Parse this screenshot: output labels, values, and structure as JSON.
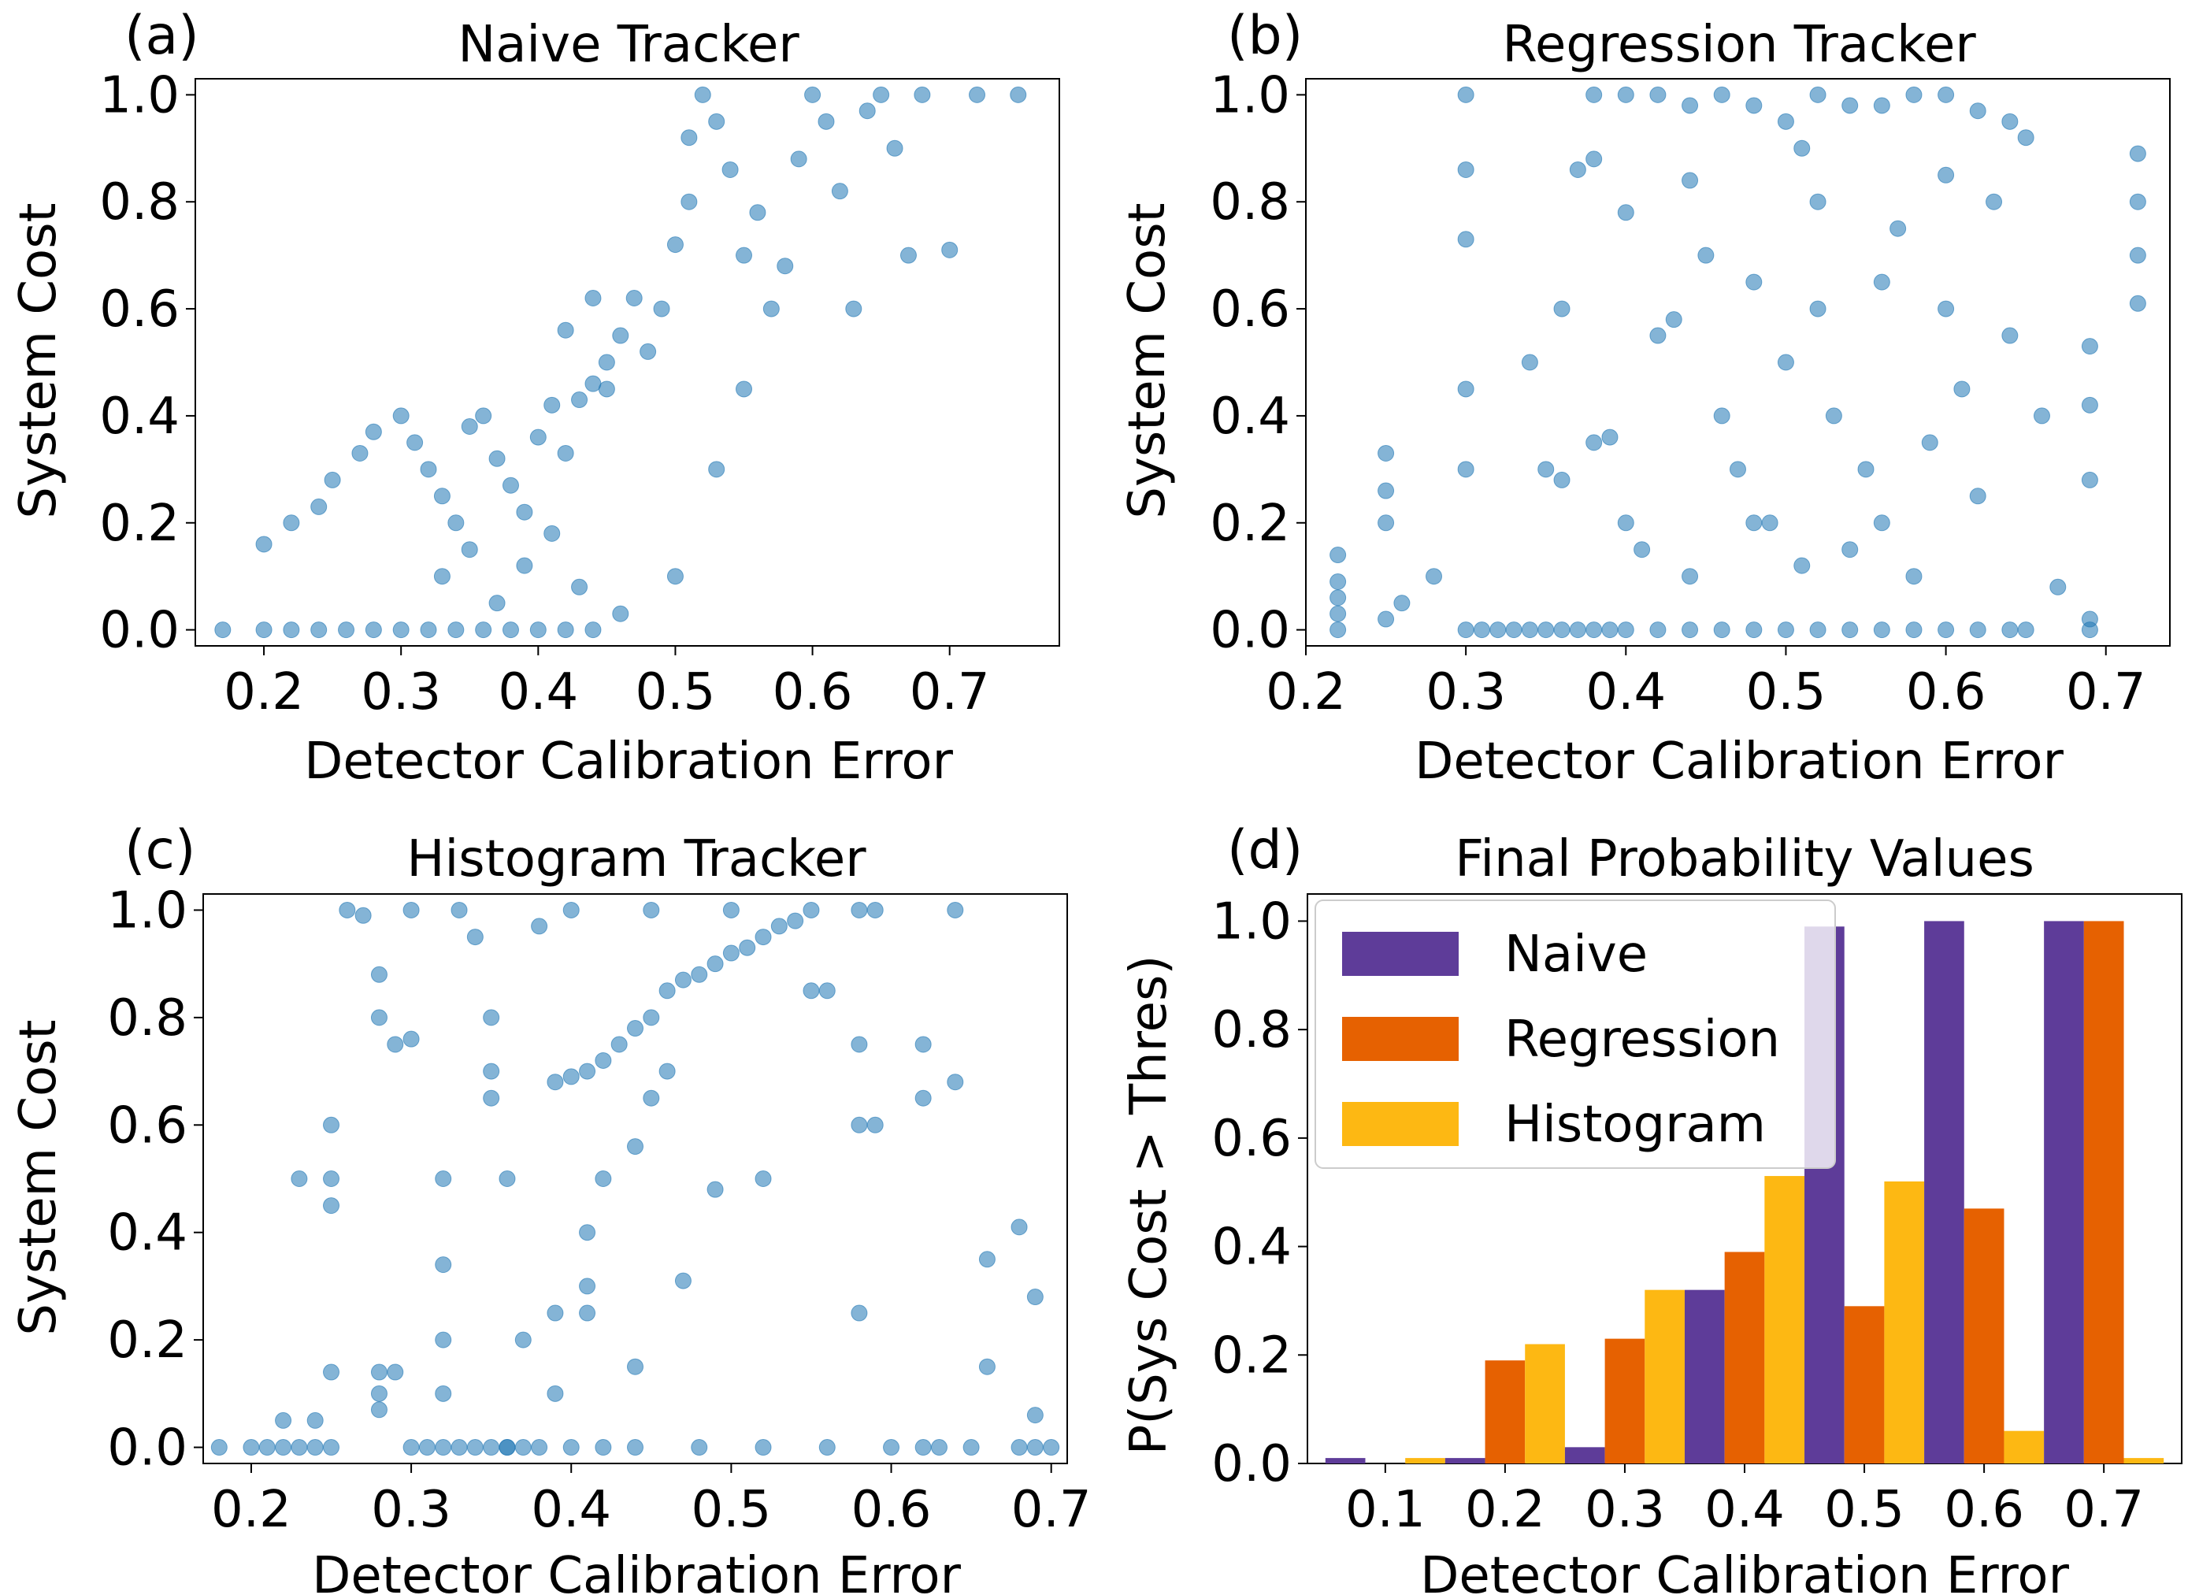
{
  "figure": {
    "panels": [
      {
        "label": "(a)",
        "title": "Naive Tracker",
        "xlabel": "Detector Calibration Error",
        "ylabel": "System Cost"
      },
      {
        "label": "(b)",
        "title": "Regression Tracker",
        "xlabel": "Detector Calibration Error",
        "ylabel": "System Cost"
      },
      {
        "label": "(c)",
        "title": "Histogram Tracker",
        "xlabel": "Detector Calibration Error",
        "ylabel": "System Cost"
      },
      {
        "label": "(d)",
        "title": "Final Probability Values",
        "xlabel": "Detector Calibration Error",
        "ylabel": "P(Sys Cost > Thres)"
      }
    ]
  },
  "chart_data": [
    {
      "type": "scatter",
      "title": "Naive Tracker",
      "xlabel": "Detector Calibration Error",
      "ylabel": "System Cost",
      "xlim": [
        0.15,
        0.78
      ],
      "ylim": [
        -0.03,
        1.03
      ],
      "xticks": [
        "0.2",
        "0.3",
        "0.4",
        "0.5",
        "0.6",
        "0.7"
      ],
      "yticks": [
        "0.0",
        "0.2",
        "0.4",
        "0.6",
        "0.8",
        "1.0"
      ],
      "color": "#1f77b4",
      "points": [
        [
          0.17,
          0.0
        ],
        [
          0.2,
          0.0
        ],
        [
          0.22,
          0.0
        ],
        [
          0.24,
          0.0
        ],
        [
          0.26,
          0.0
        ],
        [
          0.28,
          0.0
        ],
        [
          0.3,
          0.0
        ],
        [
          0.32,
          0.0
        ],
        [
          0.34,
          0.0
        ],
        [
          0.36,
          0.0
        ],
        [
          0.38,
          0.0
        ],
        [
          0.4,
          0.0
        ],
        [
          0.42,
          0.0
        ],
        [
          0.44,
          0.0
        ],
        [
          0.46,
          0.03
        ],
        [
          0.2,
          0.16
        ],
        [
          0.22,
          0.2
        ],
        [
          0.24,
          0.23
        ],
        [
          0.25,
          0.28
        ],
        [
          0.27,
          0.33
        ],
        [
          0.28,
          0.37
        ],
        [
          0.3,
          0.4
        ],
        [
          0.31,
          0.35
        ],
        [
          0.32,
          0.3
        ],
        [
          0.33,
          0.25
        ],
        [
          0.34,
          0.2
        ],
        [
          0.35,
          0.38
        ],
        [
          0.36,
          0.4
        ],
        [
          0.37,
          0.32
        ],
        [
          0.38,
          0.27
        ],
        [
          0.39,
          0.22
        ],
        [
          0.4,
          0.36
        ],
        [
          0.41,
          0.42
        ],
        [
          0.42,
          0.33
        ],
        [
          0.43,
          0.43
        ],
        [
          0.44,
          0.46
        ],
        [
          0.45,
          0.5
        ],
        [
          0.46,
          0.55
        ],
        [
          0.47,
          0.62
        ],
        [
          0.48,
          0.52
        ],
        [
          0.49,
          0.6
        ],
        [
          0.5,
          0.72
        ],
        [
          0.51,
          0.8
        ],
        [
          0.51,
          0.92
        ],
        [
          0.52,
          1.0
        ],
        [
          0.53,
          0.95
        ],
        [
          0.54,
          0.86
        ],
        [
          0.55,
          0.7
        ],
        [
          0.56,
          0.78
        ],
        [
          0.57,
          0.6
        ],
        [
          0.58,
          0.68
        ],
        [
          0.59,
          0.88
        ],
        [
          0.6,
          1.0
        ],
        [
          0.61,
          0.95
        ],
        [
          0.62,
          0.82
        ],
        [
          0.63,
          0.6
        ],
        [
          0.64,
          0.97
        ],
        [
          0.65,
          1.0
        ],
        [
          0.66,
          0.9
        ],
        [
          0.67,
          0.7
        ],
        [
          0.68,
          1.0
        ],
        [
          0.7,
          0.71
        ],
        [
          0.72,
          1.0
        ],
        [
          0.75,
          1.0
        ],
        [
          0.33,
          0.1
        ],
        [
          0.35,
          0.15
        ],
        [
          0.37,
          0.05
        ],
        [
          0.39,
          0.12
        ],
        [
          0.41,
          0.18
        ],
        [
          0.43,
          0.08
        ],
        [
          0.45,
          0.45
        ],
        [
          0.5,
          0.1
        ],
        [
          0.42,
          0.56
        ],
        [
          0.44,
          0.62
        ],
        [
          0.53,
          0.3
        ],
        [
          0.55,
          0.45
        ]
      ]
    },
    {
      "type": "scatter",
      "title": "Regression Tracker",
      "xlabel": "Detector Calibration Error",
      "ylabel": "System Cost",
      "xlim": [
        0.2,
        0.74
      ],
      "ylim": [
        -0.03,
        1.03
      ],
      "xticks": [
        "0.2",
        "0.3",
        "0.4",
        "0.5",
        "0.6",
        "0.7"
      ],
      "yticks": [
        "0.0",
        "0.2",
        "0.4",
        "0.6",
        "0.8",
        "1.0"
      ],
      "color": "#1f77b4",
      "points": [
        [
          0.22,
          0.0
        ],
        [
          0.22,
          0.03
        ],
        [
          0.22,
          0.06
        ],
        [
          0.22,
          0.09
        ],
        [
          0.22,
          0.14
        ],
        [
          0.25,
          0.02
        ],
        [
          0.25,
          0.2
        ],
        [
          0.25,
          0.26
        ],
        [
          0.25,
          0.33
        ],
        [
          0.26,
          0.05
        ],
        [
          0.28,
          0.1
        ],
        [
          0.3,
          0.0
        ],
        [
          0.3,
          0.3
        ],
        [
          0.3,
          0.45
        ],
        [
          0.3,
          0.73
        ],
        [
          0.3,
          0.86
        ],
        [
          0.3,
          1.0
        ],
        [
          0.31,
          0.0
        ],
        [
          0.32,
          0.0
        ],
        [
          0.33,
          0.0
        ],
        [
          0.34,
          0.0
        ],
        [
          0.35,
          0.0
        ],
        [
          0.36,
          0.0
        ],
        [
          0.37,
          0.0
        ],
        [
          0.38,
          0.0
        ],
        [
          0.39,
          0.0
        ],
        [
          0.4,
          0.0
        ],
        [
          0.42,
          0.0
        ],
        [
          0.44,
          0.0
        ],
        [
          0.46,
          0.0
        ],
        [
          0.48,
          0.0
        ],
        [
          0.5,
          0.0
        ],
        [
          0.52,
          0.0
        ],
        [
          0.54,
          0.0
        ],
        [
          0.56,
          0.0
        ],
        [
          0.58,
          0.0
        ],
        [
          0.6,
          0.0
        ],
        [
          0.62,
          0.0
        ],
        [
          0.64,
          0.0
        ],
        [
          0.65,
          0.0
        ],
        [
          0.34,
          0.5
        ],
        [
          0.35,
          0.3
        ],
        [
          0.36,
          0.28
        ],
        [
          0.37,
          0.86
        ],
        [
          0.38,
          0.88
        ],
        [
          0.38,
          1.0
        ],
        [
          0.4,
          1.0
        ],
        [
          0.42,
          1.0
        ],
        [
          0.44,
          0.98
        ],
        [
          0.46,
          1.0
        ],
        [
          0.48,
          0.98
        ],
        [
          0.5,
          0.95
        ],
        [
          0.51,
          0.9
        ],
        [
          0.52,
          1.0
        ],
        [
          0.54,
          0.98
        ],
        [
          0.56,
          0.98
        ],
        [
          0.58,
          1.0
        ],
        [
          0.6,
          1.0
        ],
        [
          0.62,
          0.97
        ],
        [
          0.64,
          0.95
        ],
        [
          0.65,
          0.92
        ],
        [
          0.38,
          0.35
        ],
        [
          0.39,
          0.36
        ],
        [
          0.4,
          0.2
        ],
        [
          0.41,
          0.15
        ],
        [
          0.42,
          0.55
        ],
        [
          0.43,
          0.58
        ],
        [
          0.44,
          0.1
        ],
        [
          0.45,
          0.7
        ],
        [
          0.46,
          0.4
        ],
        [
          0.47,
          0.3
        ],
        [
          0.48,
          0.65
        ],
        [
          0.49,
          0.2
        ],
        [
          0.5,
          0.5
        ],
        [
          0.51,
          0.12
        ],
        [
          0.52,
          0.8
        ],
        [
          0.53,
          0.4
        ],
        [
          0.54,
          0.15
        ],
        [
          0.55,
          0.3
        ],
        [
          0.56,
          0.65
        ],
        [
          0.57,
          0.75
        ],
        [
          0.58,
          0.1
        ],
        [
          0.59,
          0.35
        ],
        [
          0.6,
          0.6
        ],
        [
          0.61,
          0.45
        ],
        [
          0.62,
          0.25
        ],
        [
          0.63,
          0.8
        ],
        [
          0.64,
          0.55
        ],
        [
          0.66,
          0.4
        ],
        [
          0.67,
          0.08
        ],
        [
          0.69,
          0.0
        ],
        [
          0.69,
          0.02
        ],
        [
          0.69,
          0.28
        ],
        [
          0.69,
          0.42
        ],
        [
          0.69,
          0.53
        ],
        [
          0.72,
          0.61
        ],
        [
          0.72,
          0.7
        ],
        [
          0.72,
          0.8
        ],
        [
          0.72,
          0.89
        ],
        [
          0.36,
          0.6
        ],
        [
          0.4,
          0.78
        ],
        [
          0.44,
          0.84
        ],
        [
          0.48,
          0.2
        ],
        [
          0.52,
          0.6
        ],
        [
          0.56,
          0.2
        ],
        [
          0.6,
          0.85
        ]
      ]
    },
    {
      "type": "scatter",
      "title": "Histogram Tracker",
      "xlabel": "Detector Calibration Error",
      "ylabel": "System Cost",
      "xlim": [
        0.17,
        0.71
      ],
      "ylim": [
        -0.03,
        1.03
      ],
      "xticks": [
        "0.2",
        "0.3",
        "0.4",
        "0.5",
        "0.6",
        "0.7"
      ],
      "yticks": [
        "0.0",
        "0.2",
        "0.4",
        "0.6",
        "0.8",
        "1.0"
      ],
      "color": "#1f77b4",
      "points": [
        [
          0.18,
          0.0
        ],
        [
          0.2,
          0.0
        ],
        [
          0.21,
          0.0
        ],
        [
          0.22,
          0.0
        ],
        [
          0.22,
          0.05
        ],
        [
          0.23,
          0.0
        ],
        [
          0.24,
          0.0
        ],
        [
          0.24,
          0.05
        ],
        [
          0.25,
          0.0
        ],
        [
          0.25,
          0.14
        ],
        [
          0.25,
          0.45
        ],
        [
          0.25,
          0.5
        ],
        [
          0.25,
          0.6
        ],
        [
          0.23,
          0.5
        ],
        [
          0.26,
          1.0
        ],
        [
          0.27,
          0.99
        ],
        [
          0.28,
          0.07
        ],
        [
          0.28,
          0.1
        ],
        [
          0.28,
          0.14
        ],
        [
          0.28,
          0.88
        ],
        [
          0.28,
          0.8
        ],
        [
          0.29,
          0.75
        ],
        [
          0.29,
          0.14
        ],
        [
          0.3,
          0.0
        ],
        [
          0.3,
          1.0
        ],
        [
          0.3,
          0.76
        ],
        [
          0.31,
          0.0
        ],
        [
          0.32,
          0.0
        ],
        [
          0.32,
          0.1
        ],
        [
          0.32,
          0.2
        ],
        [
          0.32,
          0.34
        ],
        [
          0.32,
          0.5
        ],
        [
          0.33,
          0.0
        ],
        [
          0.33,
          1.0
        ],
        [
          0.34,
          0.0
        ],
        [
          0.34,
          0.95
        ],
        [
          0.35,
          0.0
        ],
        [
          0.35,
          0.8
        ],
        [
          0.35,
          0.7
        ],
        [
          0.35,
          0.65
        ],
        [
          0.36,
          0.5
        ],
        [
          0.36,
          0.0
        ],
        [
          0.37,
          0.0
        ],
        [
          0.37,
          0.2
        ],
        [
          0.38,
          0.0
        ],
        [
          0.38,
          0.97
        ],
        [
          0.39,
          0.68
        ],
        [
          0.39,
          0.1
        ],
        [
          0.39,
          0.25
        ],
        [
          0.4,
          0.0
        ],
        [
          0.4,
          0.69
        ],
        [
          0.4,
          1.0
        ],
        [
          0.41,
          0.7
        ],
        [
          0.41,
          0.4
        ],
        [
          0.41,
          0.3
        ],
        [
          0.41,
          0.25
        ],
        [
          0.42,
          0.72
        ],
        [
          0.42,
          0.0
        ],
        [
          0.42,
          0.5
        ],
        [
          0.43,
          0.75
        ],
        [
          0.44,
          0.78
        ],
        [
          0.44,
          0.56
        ],
        [
          0.44,
          0.15
        ],
        [
          0.45,
          0.8
        ],
        [
          0.45,
          0.65
        ],
        [
          0.46,
          0.85
        ],
        [
          0.46,
          0.7
        ],
        [
          0.47,
          0.87
        ],
        [
          0.47,
          0.31
        ],
        [
          0.48,
          0.88
        ],
        [
          0.48,
          0.0
        ],
        [
          0.49,
          0.9
        ],
        [
          0.49,
          0.48
        ],
        [
          0.5,
          0.92
        ],
        [
          0.51,
          0.93
        ],
        [
          0.52,
          0.95
        ],
        [
          0.52,
          0.5
        ],
        [
          0.53,
          0.97
        ],
        [
          0.54,
          0.98
        ],
        [
          0.55,
          1.0
        ],
        [
          0.55,
          0.85
        ],
        [
          0.5,
          1.0
        ],
        [
          0.45,
          1.0
        ],
        [
          0.56,
          0.0
        ],
        [
          0.56,
          0.85
        ],
        [
          0.58,
          1.0
        ],
        [
          0.58,
          0.75
        ],
        [
          0.58,
          0.6
        ],
        [
          0.58,
          0.25
        ],
        [
          0.59,
          0.6
        ],
        [
          0.59,
          1.0
        ],
        [
          0.6,
          0.0
        ],
        [
          0.62,
          0.0
        ],
        [
          0.62,
          0.65
        ],
        [
          0.62,
          0.75
        ],
        [
          0.63,
          0.0
        ],
        [
          0.64,
          0.68
        ],
        [
          0.64,
          1.0
        ],
        [
          0.65,
          0.0
        ],
        [
          0.66,
          0.35
        ],
        [
          0.66,
          0.15
        ],
        [
          0.68,
          0.0
        ],
        [
          0.68,
          0.41
        ],
        [
          0.69,
          0.0
        ],
        [
          0.69,
          0.06
        ],
        [
          0.69,
          0.28
        ],
        [
          0.7,
          0.0
        ],
        [
          0.52,
          0.0
        ],
        [
          0.44,
          0.0
        ],
        [
          0.36,
          0.0
        ]
      ]
    },
    {
      "type": "bar",
      "title": "Final Probability Values",
      "xlabel": "Detector Calibration Error",
      "ylabel": "P(Sys Cost > Thres)",
      "categories": [
        "0.1",
        "0.2",
        "0.3",
        "0.4",
        "0.5",
        "0.6",
        "0.7"
      ],
      "ylim": [
        0,
        1.05
      ],
      "yticks": [
        "0.0",
        "0.2",
        "0.4",
        "0.6",
        "0.8",
        "1.0"
      ],
      "legend_position": "top-left",
      "series": [
        {
          "name": "Naive",
          "color": "#5e3c99",
          "values": [
            0.01,
            0.01,
            0.03,
            0.32,
            0.99,
            1.0,
            1.0
          ]
        },
        {
          "name": "Regression",
          "color": "#e66101",
          "values": [
            0.0,
            0.19,
            0.23,
            0.39,
            0.29,
            0.47,
            1.0
          ]
        },
        {
          "name": "Histogram",
          "color": "#fdb813",
          "values": [
            0.01,
            0.22,
            0.32,
            0.53,
            0.52,
            0.06,
            0.01
          ]
        }
      ]
    }
  ]
}
